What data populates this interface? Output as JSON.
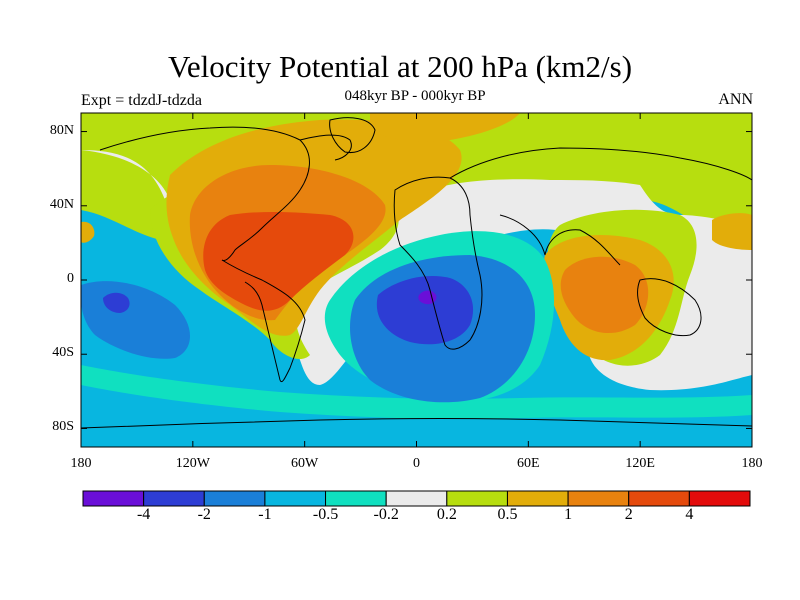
{
  "header": {
    "title": "Velocity Potential at 200 hPa (km2/s)",
    "subtitle": "048kyr BP - 000kyr BP",
    "left_note": "Expt = tdzdJ-tdzda",
    "right_note": "ANN"
  },
  "map": {
    "projection": "cylindrical equidistant",
    "lat_range": [
      -90,
      90
    ],
    "lon_range": [
      -180,
      180
    ],
    "lat_ticks": [
      {
        "value": 80,
        "label": "80N"
      },
      {
        "value": 40,
        "label": "40N"
      },
      {
        "value": 0,
        "label": "0"
      },
      {
        "value": -40,
        "label": "40S"
      },
      {
        "value": -80,
        "label": "80S"
      }
    ],
    "lon_ticks": [
      {
        "value": -180,
        "label": "180"
      },
      {
        "value": -120,
        "label": "120W"
      },
      {
        "value": -60,
        "label": "60W"
      },
      {
        "value": 0,
        "label": "0"
      },
      {
        "value": 60,
        "label": "60E"
      },
      {
        "value": 120,
        "label": "120E"
      },
      {
        "value": 180,
        "label": "180"
      }
    ],
    "field_features": [
      {
        "name": "Americas / Atlantic positive maximum",
        "lon": -95,
        "lat": 10,
        "level": 2
      },
      {
        "name": "Indian Ocean / Maritime Continent positive",
        "lon": 95,
        "lat": 0,
        "level": 1.5
      },
      {
        "name": "South Atlantic / Africa negative minimum",
        "lon": 5,
        "lat": -10,
        "level": -4
      },
      {
        "name": "South Pacific negative",
        "lon": -160,
        "lat": -15,
        "level": -1.5
      }
    ]
  },
  "colorbar": {
    "levels": [
      "-4",
      "-2",
      "-1",
      "-0.5",
      "-0.2",
      "0.2",
      "0.5",
      "1",
      "2",
      "4"
    ],
    "colors": [
      "#6a0fd8",
      "#2d3dd4",
      "#1a7fd8",
      "#08b6e0",
      "#10e0c0",
      "#ebebeb",
      "#b7de0f",
      "#e2ad0a",
      "#e8820f",
      "#e54a0c",
      "#e30b0b"
    ]
  }
}
